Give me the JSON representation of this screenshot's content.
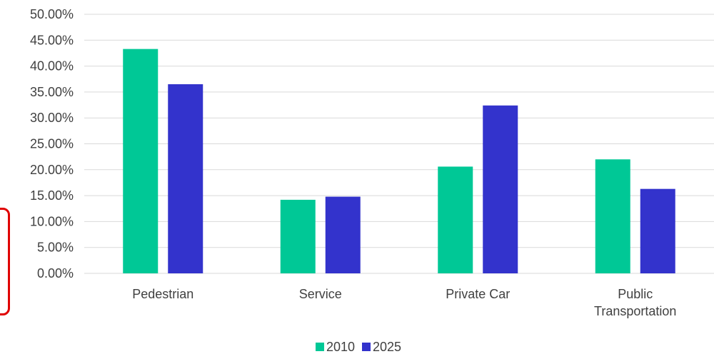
{
  "colors": {
    "series_2010": "#00c896",
    "series_2025": "#3333cc",
    "gridline": "#d9d9d9",
    "side_marker": "#e00000"
  },
  "chart_data": {
    "type": "bar",
    "title": "",
    "xlabel": "",
    "ylabel": "",
    "ylim": [
      0,
      0.5
    ],
    "y_ticks": [
      "0.00%",
      "5.00%",
      "10.00%",
      "15.00%",
      "20.00%",
      "25.00%",
      "30.00%",
      "35.00%",
      "40.00%",
      "45.00%",
      "50.00%"
    ],
    "categories": [
      [
        "Pedestrian"
      ],
      [
        "Service"
      ],
      [
        "Private Car"
      ],
      [
        "Public",
        "Transportation"
      ]
    ],
    "series": [
      {
        "name": "2010",
        "values": [
          0.433,
          0.142,
          0.206,
          0.22
        ]
      },
      {
        "name": "2025",
        "values": [
          0.365,
          0.148,
          0.324,
          0.163
        ]
      }
    ],
    "grid": true,
    "legend_position": "bottom"
  }
}
